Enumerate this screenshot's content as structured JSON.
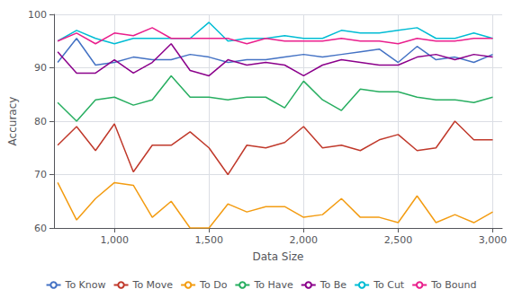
{
  "chart_data": {
    "type": "line",
    "title": "",
    "xlabel": "Data Size",
    "ylabel": "Accuracy",
    "x": [
      700,
      800,
      900,
      1000,
      1100,
      1200,
      1300,
      1400,
      1500,
      1600,
      1700,
      1800,
      1900,
      2000,
      2100,
      2200,
      2300,
      2400,
      2500,
      2600,
      2700,
      2800,
      2900,
      3000
    ],
    "series": [
      {
        "name": "To Know",
        "color": "#4472C4",
        "values": [
          91.0,
          95.5,
          90.5,
          91.0,
          92.0,
          91.5,
          91.5,
          92.5,
          92.0,
          91.0,
          91.5,
          91.5,
          92.0,
          92.5,
          92.0,
          92.5,
          93.0,
          93.5,
          91.0,
          94.0,
          91.5,
          92.0,
          91.0,
          92.5
        ]
      },
      {
        "name": "To Move",
        "color": "#C0392B",
        "values": [
          75.5,
          79.0,
          74.5,
          79.5,
          70.5,
          75.5,
          75.5,
          78.0,
          75.0,
          70.0,
          75.5,
          75.0,
          76.0,
          79.0,
          75.0,
          75.5,
          74.5,
          76.5,
          77.5,
          74.5,
          75.0,
          80.0,
          76.5,
          76.5
        ]
      },
      {
        "name": "To Do",
        "color": "#F39C12",
        "values": [
          68.5,
          61.5,
          65.5,
          68.5,
          68.0,
          62.0,
          65.0,
          60.0,
          60.0,
          64.5,
          63.0,
          64.0,
          64.0,
          62.0,
          62.5,
          65.5,
          62.0,
          62.0,
          61.0,
          66.0,
          61.0,
          62.5,
          61.0,
          63.0
        ]
      },
      {
        "name": "To Have",
        "color": "#27AE60",
        "values": [
          83.5,
          80.0,
          84.0,
          84.5,
          83.0,
          84.0,
          88.5,
          84.5,
          84.5,
          84.0,
          84.5,
          84.5,
          82.5,
          87.5,
          84.0,
          82.0,
          86.0,
          85.5,
          85.5,
          84.5,
          84.0,
          84.0,
          83.5,
          84.5
        ]
      },
      {
        "name": "To Be",
        "color": "#8B008B",
        "values": [
          93.0,
          89.0,
          89.0,
          91.5,
          89.0,
          91.0,
          94.5,
          89.5,
          88.5,
          91.5,
          90.5,
          91.0,
          90.5,
          88.5,
          90.5,
          91.5,
          91.0,
          90.5,
          90.5,
          92.0,
          92.5,
          91.5,
          92.5,
          92.0
        ]
      },
      {
        "name": "To Cut",
        "color": "#00BCD4",
        "values": [
          95.0,
          97.0,
          95.5,
          94.5,
          95.5,
          95.5,
          95.5,
          95.5,
          98.5,
          95.0,
          95.5,
          95.5,
          96.0,
          95.5,
          95.5,
          97.0,
          96.5,
          96.5,
          97.0,
          97.5,
          95.5,
          95.5,
          96.5,
          95.5
        ]
      },
      {
        "name": "To Bound",
        "color": "#E91E8C",
        "values": [
          95.0,
          96.5,
          94.5,
          96.5,
          96.0,
          97.5,
          95.5,
          95.5,
          95.5,
          95.5,
          94.5,
          95.5,
          95.0,
          95.0,
          95.0,
          95.5,
          95.0,
          95.0,
          94.5,
          95.5,
          95.0,
          95.0,
          95.5,
          95.5
        ]
      }
    ],
    "xlim": [
      680,
      3050
    ],
    "xticks": [
      1000,
      1500,
      2000,
      2500,
      3000
    ],
    "ylim": [
      60,
      100
    ],
    "yticks": [
      60,
      70,
      80,
      90,
      100
    ],
    "grid": true,
    "legend": "bottom"
  }
}
